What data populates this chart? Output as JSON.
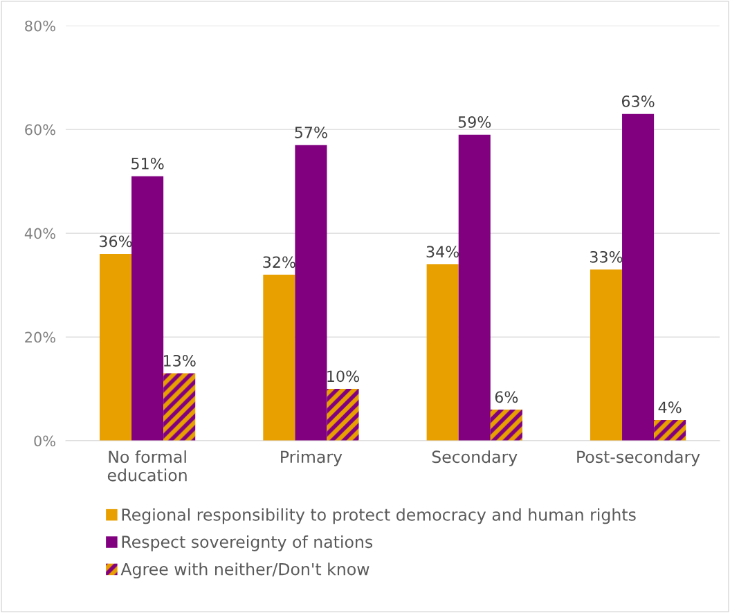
{
  "chart_data": {
    "type": "bar",
    "categories": [
      "No formal\neducation",
      "Primary",
      "Secondary",
      "Post-secondary"
    ],
    "series": [
      {
        "name": "Regional responsibility to protect democracy and human rights",
        "color": "#e89f00",
        "values": [
          36,
          32,
          34,
          33
        ],
        "value_labels": [
          "36%",
          "32%",
          "34%",
          "33%"
        ]
      },
      {
        "name": "Respect sovereignty of nations",
        "color": "#800080",
        "values": [
          51,
          57,
          59,
          63
        ],
        "value_labels": [
          "51%",
          "57%",
          "59%",
          "63%"
        ]
      },
      {
        "name": "Agree with neither/Don't know",
        "color": "#e89f00",
        "values": [
          13,
          10,
          6,
          4
        ],
        "value_labels": [
          "13%",
          "10%",
          "6%",
          "4%"
        ]
      }
    ],
    "ylim": [
      0,
      80
    ],
    "yticks": [
      {
        "value": 0,
        "label": "0%"
      },
      {
        "value": 20,
        "label": "20%"
      },
      {
        "value": 40,
        "label": "40%"
      },
      {
        "value": 60,
        "label": "60%"
      },
      {
        "value": 80,
        "label": "80%"
      }
    ],
    "grid": "y",
    "legend": "bottom"
  }
}
